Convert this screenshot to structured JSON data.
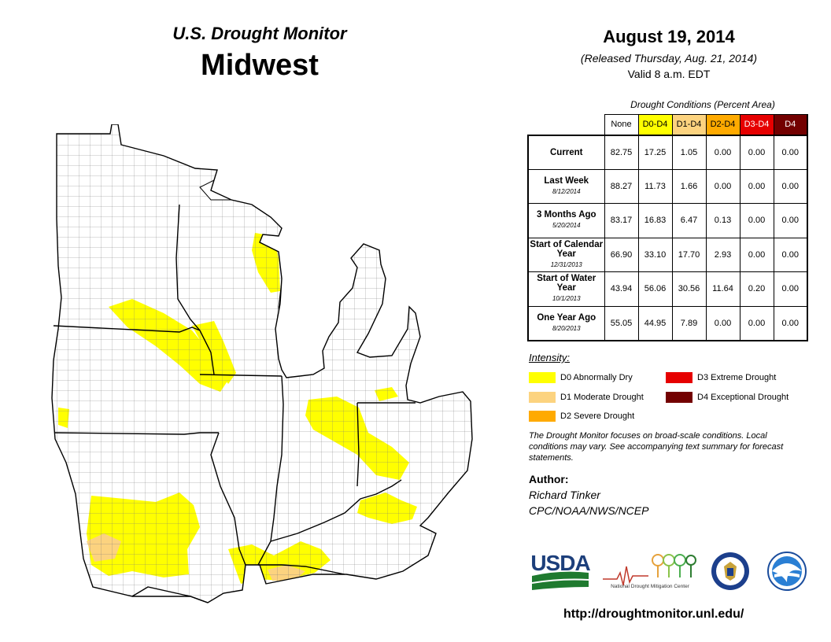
{
  "header": {
    "monitor_title": "U.S. Drought Monitor",
    "region": "Midwest",
    "date": "August 19, 2014",
    "released": "(Released Thursday, Aug. 21, 2014)",
    "valid": "Valid  8 a.m. EDT"
  },
  "conditions": {
    "caption": "Drought Conditions (Percent Area)",
    "columns": [
      {
        "label": "None",
        "color": "#ffffff"
      },
      {
        "label": "D0-D4",
        "color": "#ffff00"
      },
      {
        "label": "D1-D4",
        "color": "#fcd37f"
      },
      {
        "label": "D2-D4",
        "color": "#ffaa00"
      },
      {
        "label": "D3-D4",
        "color": "#e60000"
      },
      {
        "label": "D4",
        "color": "#730000"
      }
    ],
    "rows": [
      {
        "label": "Current",
        "date": "",
        "values": [
          "82.75",
          "17.25",
          "1.05",
          "0.00",
          "0.00",
          "0.00"
        ]
      },
      {
        "label": "Last Week",
        "date": "8/12/2014",
        "values": [
          "88.27",
          "11.73",
          "1.66",
          "0.00",
          "0.00",
          "0.00"
        ]
      },
      {
        "label": "3 Months Ago",
        "date": "5/20/2014",
        "values": [
          "83.17",
          "16.83",
          "6.47",
          "0.13",
          "0.00",
          "0.00"
        ]
      },
      {
        "label": "Start of Calendar Year",
        "date": "12/31/2013",
        "values": [
          "66.90",
          "33.10",
          "17.70",
          "2.93",
          "0.00",
          "0.00"
        ]
      },
      {
        "label": "Start of Water Year",
        "date": "10/1/2013",
        "values": [
          "43.94",
          "56.06",
          "30.56",
          "11.64",
          "0.20",
          "0.00"
        ]
      },
      {
        "label": "One Year Ago",
        "date": "8/20/2013",
        "values": [
          "55.05",
          "44.95",
          "7.89",
          "0.00",
          "0.00",
          "0.00"
        ]
      }
    ]
  },
  "legend": {
    "heading": "Intensity:",
    "items": [
      {
        "label": "D0 Abnormally Dry",
        "color": "#ffff00"
      },
      {
        "label": "D1 Moderate Drought",
        "color": "#fcd37f"
      },
      {
        "label": "D2 Severe Drought",
        "color": "#ffaa00"
      },
      {
        "label": "D3 Extreme Drought",
        "color": "#e60000"
      },
      {
        "label": "D4 Exceptional Drought",
        "color": "#730000"
      }
    ]
  },
  "disclaimer": "The Drought Monitor focuses on broad-scale conditions. Local conditions may vary. See accompanying text summary for forecast statements.",
  "author": {
    "heading": "Author:",
    "name": "Richard Tinker",
    "org": "CPC/NOAA/NWS/NCEP"
  },
  "logos": {
    "usda": "USDA",
    "ndmc": "National Drought Mitigation Center"
  },
  "website": "http://droughtmonitor.unl.edu/",
  "map": {
    "states": [
      "MN",
      "WI",
      "MI",
      "IA",
      "IL",
      "IN",
      "OH",
      "MO",
      "KY"
    ],
    "colors": {
      "D0": "#ffff00",
      "D1": "#fcd37f",
      "land": "#ffffff",
      "lake": "#ffffff",
      "county_line": "#7a7a7a",
      "state_line": "#000000"
    }
  }
}
